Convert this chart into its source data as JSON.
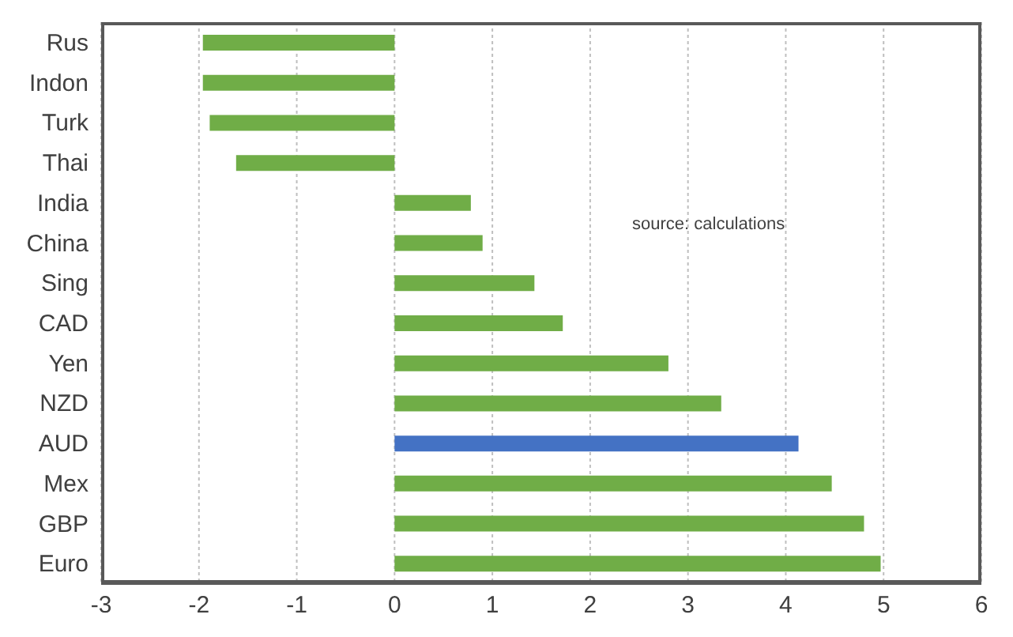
{
  "chart_data": {
    "type": "bar",
    "orientation": "horizontal",
    "categories": [
      "Rus",
      "Indon",
      "Turk",
      "Thai",
      "India",
      "China",
      "Sing",
      "CAD",
      "Yen",
      "NZD",
      "AUD",
      "Mex",
      "GBP",
      "Euro"
    ],
    "values": [
      -1.96,
      -1.96,
      -1.89,
      -1.62,
      0.78,
      0.9,
      1.43,
      1.72,
      2.8,
      3.34,
      4.13,
      4.47,
      4.8,
      4.97
    ],
    "colors": [
      "#70ad47",
      "#70ad47",
      "#70ad47",
      "#70ad47",
      "#70ad47",
      "#70ad47",
      "#70ad47",
      "#70ad47",
      "#70ad47",
      "#70ad47",
      "#4472c4",
      "#70ad47",
      "#70ad47",
      "#70ad47"
    ],
    "xlim": [
      -3,
      6
    ],
    "xticks": [
      -3,
      -2,
      -1,
      0,
      1,
      2,
      3,
      4,
      5,
      6
    ],
    "grid": "x",
    "annotations": [
      "source: calculations"
    ]
  }
}
